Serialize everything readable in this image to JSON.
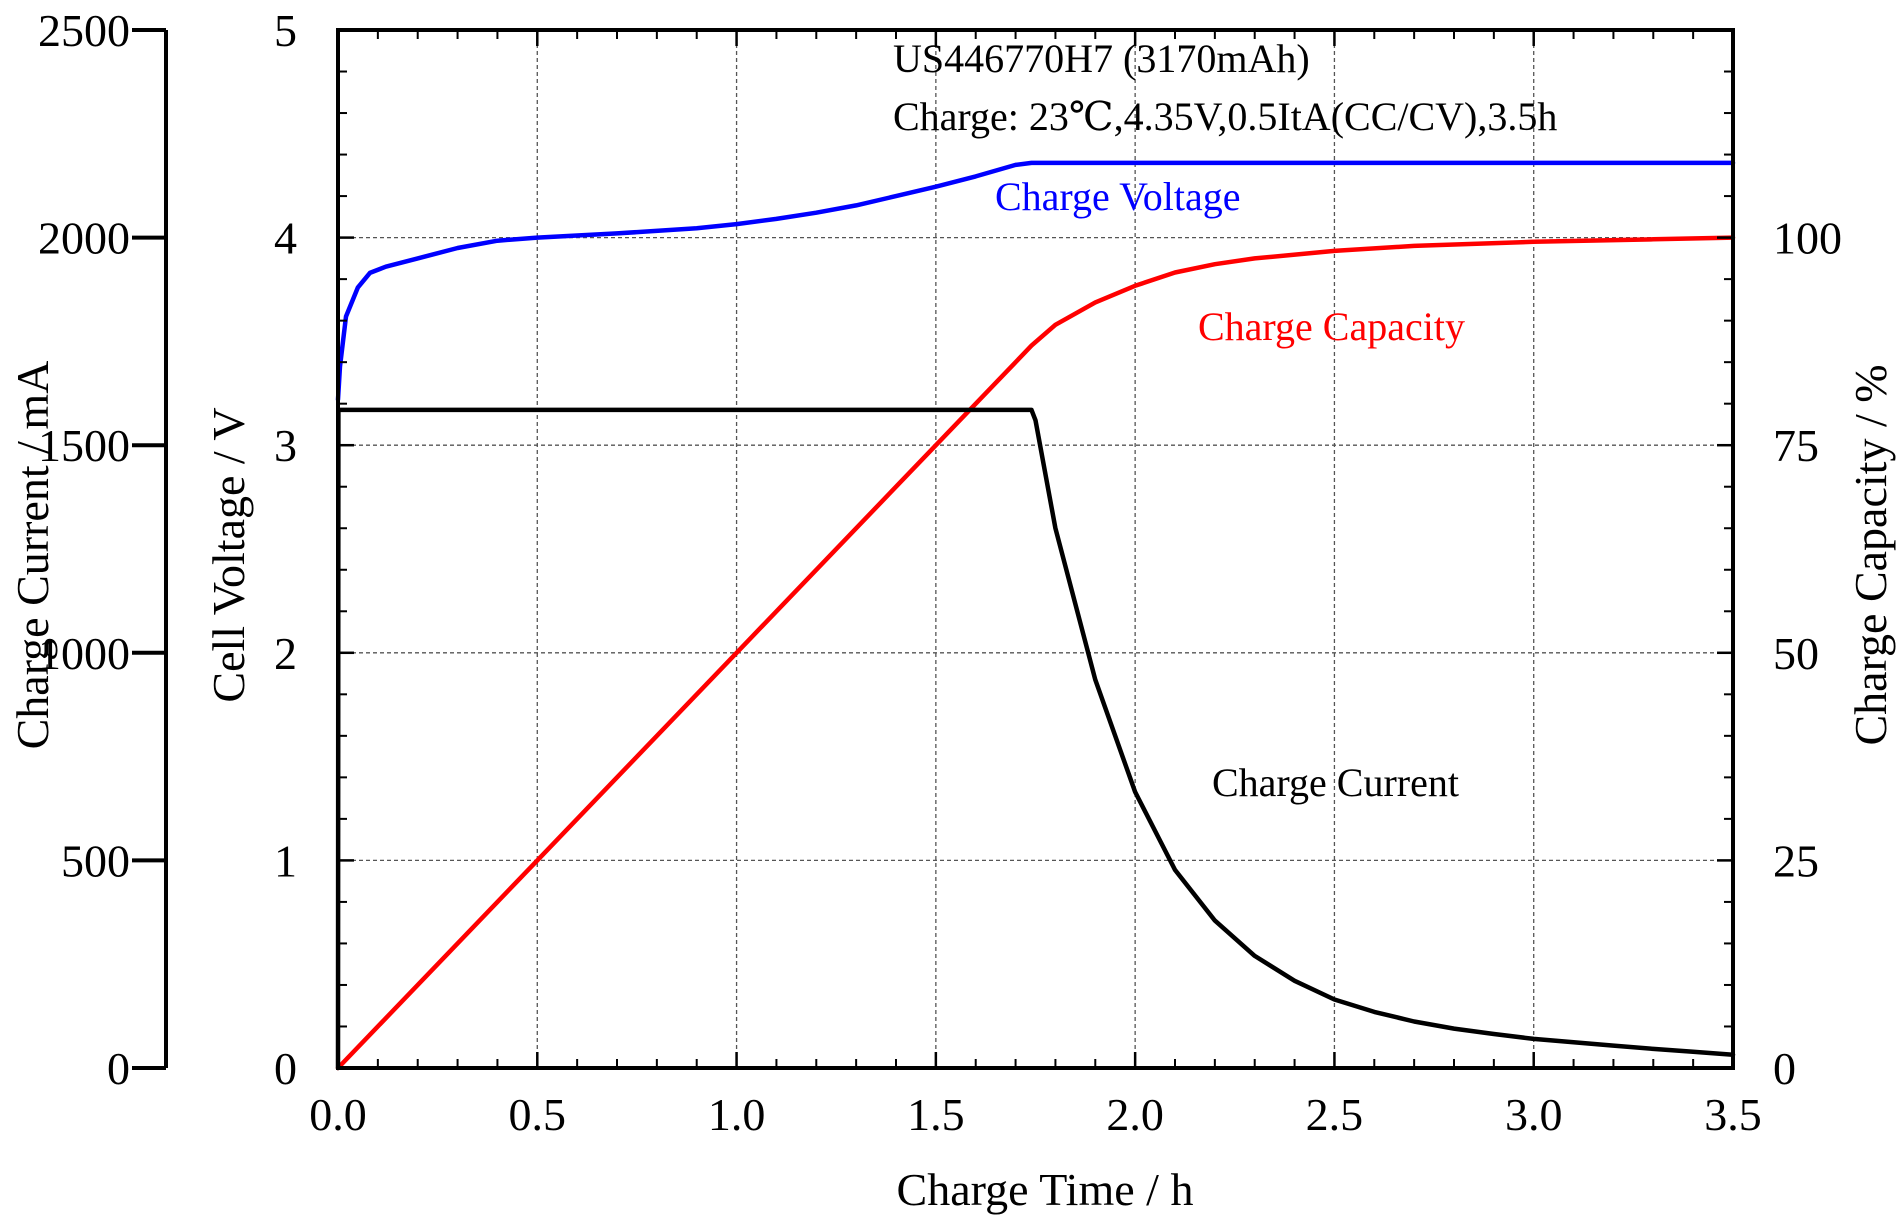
{
  "chart_data": {
    "type": "line",
    "title": "",
    "annotations": [
      {
        "text": "US446770H7 (3170mAh)"
      },
      {
        "text": "Charge: 23℃,4.35V,0.5ItA(CC/CV),3.5h"
      }
    ],
    "xlabel": "Charge Time / h",
    "xlim": [
      0,
      3.5
    ],
    "xticks": [
      "0.0",
      "0.5",
      "1.0",
      "1.5",
      "2.0",
      "2.5",
      "3.0",
      "3.5"
    ],
    "axes": {
      "current": {
        "label": "Charge Current / mA",
        "lim": [
          0,
          2500
        ],
        "ticks": [
          "0",
          "500",
          "1000",
          "1500",
          "2000",
          "2500"
        ]
      },
      "voltage": {
        "label": "Cell Voltage / V",
        "lim": [
          0,
          5
        ],
        "ticks": [
          "0",
          "1",
          "2",
          "3",
          "4",
          "5"
        ]
      },
      "capacity": {
        "label": "Charge Capacity / %",
        "lim": [
          0,
          125
        ],
        "ticks": [
          "0",
          "25",
          "50",
          "75",
          "100"
        ]
      }
    },
    "grid": true,
    "series": [
      {
        "name": "Charge Voltage",
        "axis": "voltage",
        "color": "#0000ff",
        "x": [
          0,
          0.005,
          0.02,
          0.05,
          0.08,
          0.12,
          0.2,
          0.3,
          0.4,
          0.5,
          0.7,
          0.9,
          1.0,
          1.1,
          1.2,
          1.3,
          1.4,
          1.5,
          1.6,
          1.7,
          1.74,
          2.0,
          2.5,
          3.0,
          3.5
        ],
        "y": [
          3.22,
          3.38,
          3.62,
          3.76,
          3.83,
          3.86,
          3.9,
          3.95,
          3.985,
          4.0,
          4.02,
          4.045,
          4.065,
          4.09,
          4.12,
          4.155,
          4.2,
          4.245,
          4.295,
          4.35,
          4.36,
          4.36,
          4.36,
          4.36,
          4.36
        ]
      },
      {
        "name": "Charge Capacity",
        "axis": "capacity",
        "color": "#ff0000",
        "x": [
          0,
          0.5,
          1.0,
          1.5,
          1.74,
          1.8,
          1.9,
          2.0,
          2.1,
          2.2,
          2.3,
          2.5,
          2.7,
          3.0,
          3.3,
          3.5
        ],
        "y": [
          0,
          25,
          50,
          75,
          87,
          89.5,
          92.2,
          94.2,
          95.8,
          96.8,
          97.5,
          98.4,
          99.0,
          99.5,
          99.8,
          100
        ]
      },
      {
        "name": "Charge Current",
        "axis": "current",
        "color": "#000000",
        "x": [
          0,
          0.001,
          1.74,
          1.75,
          1.8,
          1.9,
          2.0,
          2.1,
          2.2,
          2.3,
          2.4,
          2.5,
          2.6,
          2.7,
          2.8,
          2.9,
          3.0,
          3.1,
          3.2,
          3.3,
          3.4,
          3.5
        ],
        "y": [
          0,
          1585,
          1585,
          1560,
          1300,
          935,
          665,
          477,
          355,
          270,
          210,
          165,
          135,
          112,
          95,
          82,
          70,
          62,
          54,
          46,
          39,
          32
        ]
      }
    ],
    "series_labels": [
      "Charge Voltage",
      "Charge Capacity",
      "Charge Current"
    ]
  }
}
